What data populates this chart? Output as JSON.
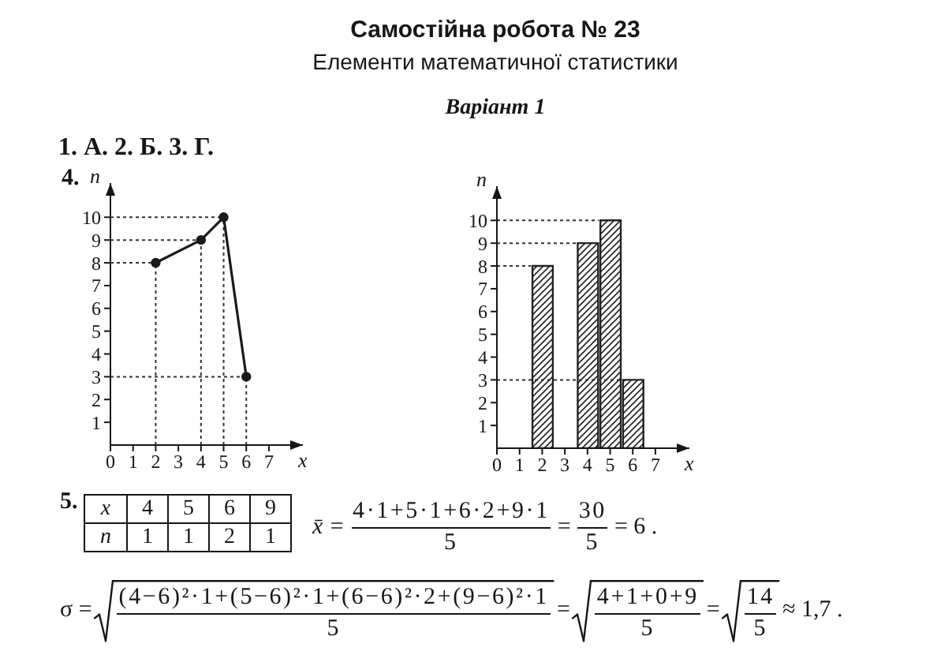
{
  "chart_data": [
    {
      "type": "other",
      "title": "Самостійна робота № 23",
      "subtitle": "Елементи математичної статистики",
      "annotations": [
        "Варіант 1",
        "1. А. 2. Б. 3. Г."
      ]
    },
    {
      "type": "line",
      "x": [
        2,
        4,
        5,
        6
      ],
      "values": [
        8,
        9,
        10,
        3
      ],
      "color": "#1a1a1a",
      "marker": "circle",
      "line_style": "solid",
      "xlabel": "x",
      "ylabel": "n",
      "xlim": [
        0,
        8.5
      ],
      "ylim": [
        0,
        11.5
      ],
      "xticks": [
        0,
        1,
        2,
        3,
        4,
        5,
        6,
        7
      ],
      "yticks": [
        1,
        2,
        3,
        4,
        5,
        6,
        7,
        8,
        9,
        10
      ],
      "annotations": [
        "4."
      ],
      "ref_lines": [
        {
          "axis": "y",
          "value": 10,
          "line_style": "dotted",
          "color": "#333333"
        },
        {
          "axis": "y",
          "value": 9,
          "line_style": "dotted",
          "color": "#333333"
        },
        {
          "axis": "y",
          "value": 8,
          "line_style": "dotted",
          "color": "#333333"
        },
        {
          "axis": "y",
          "value": 3,
          "line_style": "dotted",
          "color": "#333333"
        },
        {
          "axis": "x",
          "value": 2,
          "line_style": "dotted",
          "color": "#333333"
        },
        {
          "axis": "x",
          "value": 4,
          "line_style": "dotted",
          "color": "#333333"
        },
        {
          "axis": "x",
          "value": 5,
          "line_style": "dotted",
          "color": "#333333"
        },
        {
          "axis": "x",
          "value": 6,
          "line_style": "dotted",
          "color": "#333333"
        }
      ]
    },
    {
      "type": "bar",
      "x": [
        2,
        4,
        5,
        6
      ],
      "values": [
        8,
        9,
        10,
        3
      ],
      "color": "#222222",
      "xlabel": "x",
      "ylabel": "n",
      "xlim": [
        0,
        8.5
      ],
      "ylim": [
        0,
        11.5
      ],
      "xticks": [
        0,
        1,
        2,
        3,
        4,
        5,
        6,
        7
      ],
      "yticks": [
        1,
        2,
        3,
        4,
        5,
        6,
        7,
        8,
        9,
        10
      ],
      "ref_lines": [
        {
          "axis": "y",
          "value": 10,
          "line_style": "dotted",
          "color": "#333333"
        },
        {
          "axis": "y",
          "value": 9,
          "line_style": "dotted",
          "color": "#333333"
        },
        {
          "axis": "y",
          "value": 8,
          "line_style": "dotted",
          "color": "#333333"
        },
        {
          "axis": "y",
          "value": 3,
          "line_style": "dotted",
          "color": "#333333"
        }
      ]
    },
    {
      "type": "other",
      "annotations": [
        "5.",
        "x",
        "4",
        "5",
        "6",
        "9",
        "n",
        "1",
        "1",
        "2",
        "1",
        "x̄ =",
        "4·1+5·1+6·2+9·1",
        "5",
        "=",
        "30",
        "5",
        "= 6 .",
        "σ =",
        "(4−6)²·1+(5−6)²·1+(6−6)²·2+(9−6)²·1",
        "5",
        "=",
        "4+1+0+9",
        "5",
        "=",
        "14",
        "5",
        "≈ 1,7 ."
      ]
    }
  ]
}
